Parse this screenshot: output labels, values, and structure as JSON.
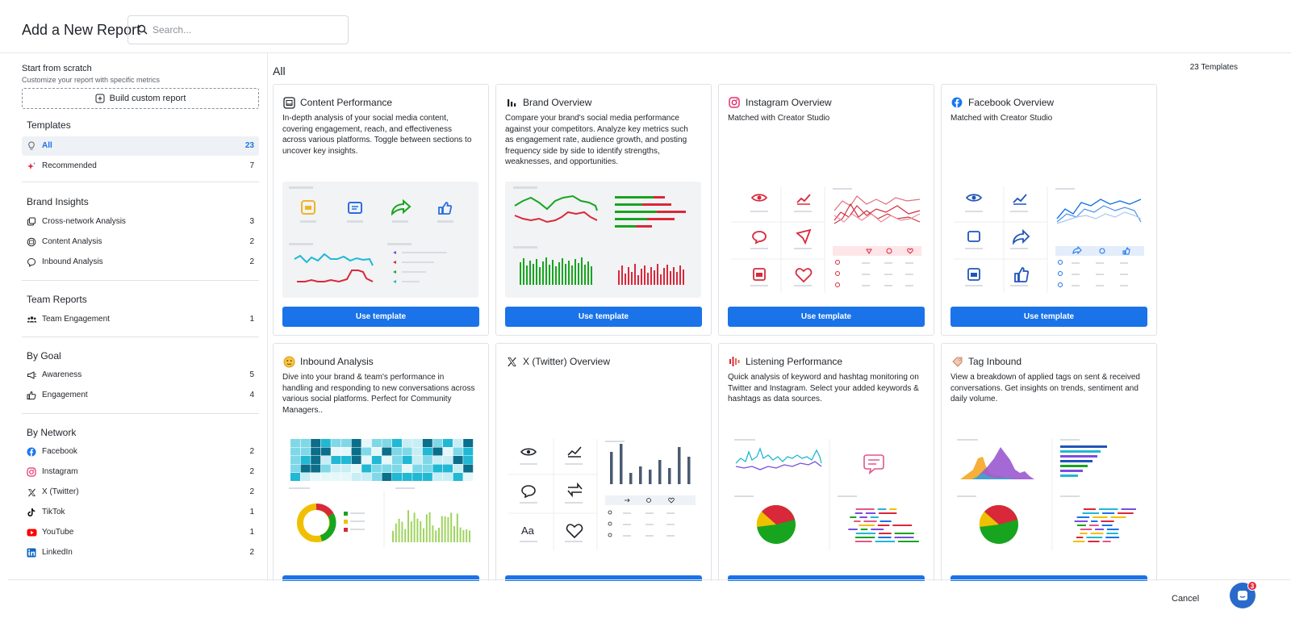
{
  "header": {
    "title": "Add a New Report",
    "search_placeholder": "Search..."
  },
  "sidebar": {
    "scratch_title": "Start from scratch",
    "scratch_subtitle": "Customize your report with specific metrics",
    "build_label": "Build custom report",
    "groups": [
      {
        "title": "Templates",
        "items": [
          {
            "label": "All",
            "count": "23",
            "icon": "bulb-icon",
            "active": true
          },
          {
            "label": "Recommended",
            "count": "7",
            "icon": "sparkle-icon"
          }
        ]
      },
      {
        "title": "Brand Insights",
        "items": [
          {
            "label": "Cross-network Analysis",
            "count": "3",
            "icon": "network-icon"
          },
          {
            "label": "Content Analysis",
            "count": "2",
            "icon": "content-icon"
          },
          {
            "label": "Inbound Analysis",
            "count": "2",
            "icon": "chat-bubble-icon"
          }
        ]
      },
      {
        "title": "Team Reports",
        "items": [
          {
            "label": "Team Engagement",
            "count": "1",
            "icon": "team-icon"
          }
        ]
      },
      {
        "title": "By Goal",
        "items": [
          {
            "label": "Awareness",
            "count": "5",
            "icon": "megaphone-icon"
          },
          {
            "label": "Engagement",
            "count": "4",
            "icon": "thumbs-up-icon"
          }
        ]
      },
      {
        "title": "By Network",
        "items": [
          {
            "label": "Facebook",
            "count": "2",
            "icon": "facebook-icon"
          },
          {
            "label": "Instagram",
            "count": "2",
            "icon": "instagram-icon"
          },
          {
            "label": "X (Twitter)",
            "count": "2",
            "icon": "x-icon"
          },
          {
            "label": "TikTok",
            "count": "1",
            "icon": "tiktok-icon"
          },
          {
            "label": "YouTube",
            "count": "1",
            "icon": "youtube-icon"
          },
          {
            "label": "LinkedIn",
            "count": "2",
            "icon": "linkedin-icon"
          }
        ]
      }
    ]
  },
  "main": {
    "title": "All",
    "count_label": "23 Templates",
    "button_label": "Use template",
    "cards": [
      {
        "title": "Content Performance",
        "icon": "content-icon",
        "description": "In-depth analysis of your social media content, covering engagement, reach, and effectiveness across various platforms. Toggle between sections to uncover key insights."
      },
      {
        "title": "Brand Overview",
        "icon": "bar-chart-icon",
        "description": "Compare your brand's social media performance against your competitors. Analyze key metrics such as engagement rate, audience growth, and posting frequency side by side to identify strengths, weaknesses, and opportunities."
      },
      {
        "title": "Instagram Overview",
        "icon": "instagram-icon",
        "description": "Matched with Creator Studio"
      },
      {
        "title": "Facebook Overview",
        "icon": "facebook-icon",
        "description": "Matched with Creator Studio"
      },
      {
        "title": "Inbound Analysis",
        "icon": "emoji-icon",
        "description": "Dive into your brand & team's performance in handling and responding to new conversations across various social platforms. Perfect for Community Managers.."
      },
      {
        "title": "X (Twitter) Overview",
        "icon": "x-icon",
        "description": ""
      },
      {
        "title": "Listening Performance",
        "icon": "listening-icon",
        "description": "Quick analysis of keyword and hashtag monitoring on Twitter and Instagram. Select your added keywords & hashtags as data sources."
      },
      {
        "title": "Tag Inbound",
        "icon": "tag-icon",
        "description": "View a breakdown of applied tags on sent & received conversations. Get insights on trends, sentiment and daily volume."
      }
    ]
  },
  "preview_text": {
    "aa_label": "Aa"
  },
  "footer": {
    "cancel_label": "Cancel",
    "chat_badge": "3"
  },
  "colors": {
    "accent": "#1a73e8",
    "brand_green": "#17a51f",
    "brand_red": "#d9283a",
    "teal": "#20b8d4"
  }
}
